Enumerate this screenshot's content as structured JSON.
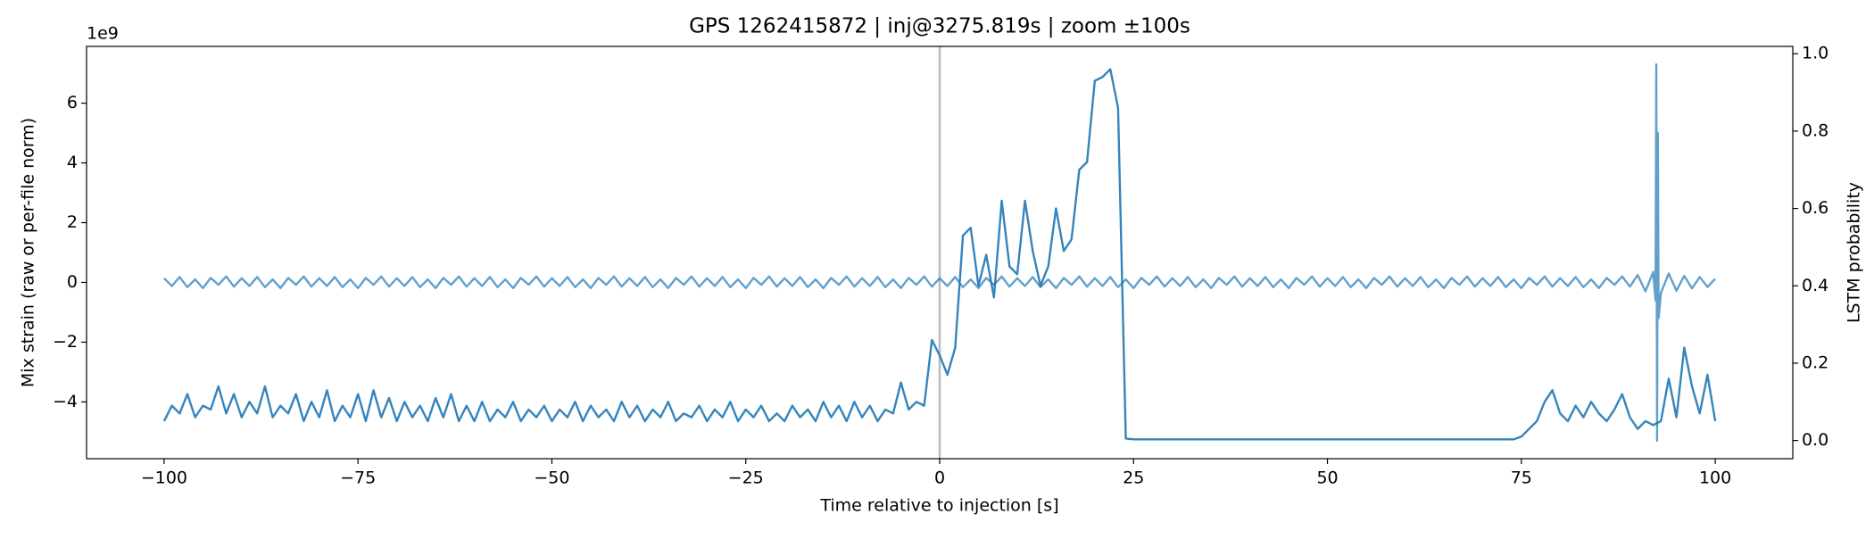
{
  "chart_data": {
    "type": "line",
    "title": "GPS 1262415872 | inj@3275.819s | zoom ±100s",
    "xlabel": "Time relative to injection [s]",
    "ylabel": "Mix strain (raw or per-file norm)",
    "y2label": "LSTM probability",
    "y_offset_label": "1e9",
    "xlim": [
      -110,
      110
    ],
    "xticks": [
      {
        "value": -100,
        "label": "−100"
      },
      {
        "value": -75,
        "label": "−75"
      },
      {
        "value": -50,
        "label": "−50"
      },
      {
        "value": -25,
        "label": "−25"
      },
      0,
      25,
      50,
      75,
      100
    ],
    "ylim": [
      -5.9,
      7.9
    ],
    "yticks": [
      {
        "value": -4,
        "label": "−4"
      },
      {
        "value": -2,
        "label": "−2"
      },
      0,
      2,
      4,
      6
    ],
    "y2lim": [
      -0.047,
      1.019
    ],
    "y2ticks": [
      {
        "value": 0,
        "label": "0.0"
      },
      0.2,
      0.4,
      0.6,
      0.8,
      {
        "value": 1,
        "label": "1.0"
      }
    ],
    "vline": {
      "x": 0,
      "color": "#bbbbbb"
    },
    "series": [
      {
        "name": "strain",
        "color": "#1f77b4",
        "opacity": 0.7,
        "axis": "y",
        "x": [
          -100,
          -99,
          -98,
          -97,
          -96,
          -95,
          -94,
          -93,
          -92,
          -91,
          -90,
          -89,
          -88,
          -87,
          -86,
          -85,
          -84,
          -83,
          -82,
          -81,
          -80,
          -79,
          -78,
          -77,
          -76,
          -75,
          -74,
          -73,
          -72,
          -71,
          -70,
          -69,
          -68,
          -67,
          -66,
          -65,
          -64,
          -63,
          -62,
          -61,
          -60,
          -59,
          -58,
          -57,
          -56,
          -55,
          -54,
          -53,
          -52,
          -51,
          -50,
          -49,
          -48,
          -47,
          -46,
          -45,
          -44,
          -43,
          -42,
          -41,
          -40,
          -39,
          -38,
          -37,
          -36,
          -35,
          -34,
          -33,
          -32,
          -31,
          -30,
          -29,
          -28,
          -27,
          -26,
          -25,
          -24,
          -23,
          -22,
          -21,
          -20,
          -19,
          -18,
          -17,
          -16,
          -15,
          -14,
          -13,
          -12,
          -11,
          -10,
          -9,
          -8,
          -7,
          -6,
          -5,
          -4,
          -3,
          -2,
          -1,
          0,
          1,
          2,
          3,
          4,
          5,
          6,
          7,
          8,
          9,
          10,
          11,
          12,
          13,
          14,
          15,
          16,
          17,
          18,
          19,
          20,
          21,
          22,
          23,
          24,
          25,
          26,
          27,
          28,
          29,
          30,
          31,
          32,
          33,
          34,
          35,
          36,
          37,
          38,
          39,
          40,
          41,
          42,
          43,
          44,
          45,
          46,
          47,
          48,
          49,
          50,
          51,
          52,
          53,
          54,
          55,
          56,
          57,
          58,
          59,
          60,
          61,
          62,
          63,
          64,
          65,
          66,
          67,
          68,
          69,
          70,
          71,
          72,
          73,
          74,
          75,
          76,
          77,
          78,
          79,
          80,
          81,
          82,
          83,
          84,
          85,
          86,
          87,
          88,
          89,
          90,
          91,
          92,
          92.3,
          92.4,
          92.5,
          92.6,
          92.7,
          93,
          94,
          95,
          96,
          97,
          98,
          99,
          100
        ],
        "values": [
          0.14,
          -0.12,
          0.18,
          -0.16,
          0.1,
          -0.19,
          0.15,
          -0.08,
          0.2,
          -0.14,
          0.14,
          -0.12,
          0.18,
          -0.16,
          0.1,
          -0.19,
          0.15,
          -0.08,
          0.2,
          -0.14,
          0.14,
          -0.12,
          0.18,
          -0.16,
          0.1,
          -0.19,
          0.15,
          -0.08,
          0.2,
          -0.14,
          0.14,
          -0.12,
          0.18,
          -0.16,
          0.1,
          -0.19,
          0.15,
          -0.08,
          0.2,
          -0.14,
          0.14,
          -0.12,
          0.18,
          -0.16,
          0.1,
          -0.19,
          0.15,
          -0.08,
          0.2,
          -0.14,
          0.14,
          -0.12,
          0.18,
          -0.16,
          0.1,
          -0.19,
          0.15,
          -0.08,
          0.2,
          -0.14,
          0.14,
          -0.12,
          0.18,
          -0.16,
          0.1,
          -0.19,
          0.15,
          -0.08,
          0.2,
          -0.14,
          0.14,
          -0.12,
          0.18,
          -0.16,
          0.1,
          -0.19,
          0.15,
          -0.08,
          0.2,
          -0.14,
          0.14,
          -0.12,
          0.18,
          -0.16,
          0.1,
          -0.19,
          0.15,
          -0.08,
          0.2,
          -0.14,
          0.14,
          -0.12,
          0.18,
          -0.16,
          0.1,
          -0.19,
          0.15,
          -0.08,
          0.2,
          -0.14,
          0.14,
          -0.12,
          0.18,
          -0.16,
          0.1,
          -0.19,
          0.15,
          -0.08,
          0.2,
          -0.14,
          0.14,
          -0.12,
          0.18,
          -0.16,
          0.1,
          -0.19,
          0.15,
          -0.08,
          0.2,
          -0.14,
          0.14,
          -0.12,
          0.18,
          -0.16,
          0.1,
          -0.19,
          0.15,
          -0.08,
          0.2,
          -0.14,
          0.14,
          -0.12,
          0.18,
          -0.16,
          0.1,
          -0.19,
          0.15,
          -0.08,
          0.2,
          -0.14,
          0.14,
          -0.12,
          0.18,
          -0.16,
          0.1,
          -0.19,
          0.15,
          -0.08,
          0.2,
          -0.14,
          0.14,
          -0.12,
          0.18,
          -0.16,
          0.1,
          -0.19,
          0.15,
          -0.08,
          0.2,
          -0.14,
          0.14,
          -0.12,
          0.18,
          -0.16,
          0.1,
          -0.19,
          0.15,
          -0.08,
          0.2,
          -0.14,
          0.14,
          -0.12,
          0.18,
          -0.16,
          0.1,
          -0.19,
          0.15,
          -0.08,
          0.2,
          -0.14,
          0.14,
          -0.12,
          0.18,
          -0.16,
          0.1,
          -0.19,
          0.15,
          -0.08,
          0.2,
          -0.14,
          0.25,
          -0.3,
          0.35,
          -0.6,
          7.3,
          -5.3,
          5.0,
          -1.2,
          -0.35,
          0.3,
          -0.28,
          0.22,
          -0.2,
          0.18,
          -0.15,
          0.12
        ]
      },
      {
        "name": "LSTM probability",
        "color": "#1f77b4",
        "opacity": 0.9,
        "axis": "y2",
        "x": [
          -100,
          -99,
          -98,
          -97,
          -96,
          -95,
          -94,
          -93,
          -92,
          -91,
          -90,
          -89,
          -88,
          -87,
          -86,
          -85,
          -84,
          -83,
          -82,
          -81,
          -80,
          -79,
          -78,
          -77,
          -76,
          -75,
          -74,
          -73,
          -72,
          -71,
          -70,
          -69,
          -68,
          -67,
          -66,
          -65,
          -64,
          -63,
          -62,
          -61,
          -60,
          -59,
          -58,
          -57,
          -56,
          -55,
          -54,
          -53,
          -52,
          -51,
          -50,
          -49,
          -48,
          -47,
          -46,
          -45,
          -44,
          -43,
          -42,
          -41,
          -40,
          -39,
          -38,
          -37,
          -36,
          -35,
          -34,
          -33,
          -32,
          -31,
          -30,
          -29,
          -28,
          -27,
          -26,
          -25,
          -24,
          -23,
          -22,
          -21,
          -20,
          -19,
          -18,
          -17,
          -16,
          -15,
          -14,
          -13,
          -12,
          -11,
          -10,
          -9,
          -8,
          -7,
          -6,
          -5,
          -4,
          -3,
          -2,
          -1,
          0,
          1,
          2,
          3,
          4,
          5,
          6,
          7,
          8,
          9,
          10,
          11,
          12,
          13,
          14,
          15,
          16,
          17,
          18,
          19,
          20,
          21,
          22,
          23,
          24,
          25,
          26,
          27,
          28,
          29,
          30,
          31,
          32,
          33,
          34,
          35,
          36,
          37,
          38,
          39,
          40,
          41,
          42,
          43,
          44,
          45,
          46,
          47,
          48,
          49,
          50,
          51,
          52,
          53,
          54,
          55,
          56,
          57,
          58,
          59,
          60,
          61,
          62,
          63,
          64,
          65,
          66,
          67,
          68,
          69,
          70,
          71,
          72,
          73,
          74,
          75,
          76,
          77,
          78,
          79,
          80,
          81,
          82,
          83,
          84,
          85,
          86,
          87,
          88,
          89,
          90,
          91,
          92,
          93,
          94,
          95,
          96,
          97,
          98,
          99,
          100
        ],
        "values": [
          0.05,
          0.09,
          0.07,
          0.12,
          0.06,
          0.09,
          0.08,
          0.14,
          0.07,
          0.12,
          0.06,
          0.1,
          0.07,
          0.14,
          0.06,
          0.09,
          0.07,
          0.12,
          0.05,
          0.1,
          0.06,
          0.13,
          0.05,
          0.09,
          0.06,
          0.12,
          0.05,
          0.13,
          0.06,
          0.11,
          0.05,
          0.1,
          0.06,
          0.09,
          0.05,
          0.11,
          0.06,
          0.12,
          0.05,
          0.09,
          0.05,
          0.1,
          0.05,
          0.08,
          0.06,
          0.1,
          0.05,
          0.08,
          0.06,
          0.09,
          0.05,
          0.08,
          0.06,
          0.1,
          0.05,
          0.09,
          0.06,
          0.08,
          0.05,
          0.1,
          0.06,
          0.09,
          0.05,
          0.08,
          0.06,
          0.1,
          0.05,
          0.07,
          0.06,
          0.09,
          0.05,
          0.08,
          0.06,
          0.1,
          0.05,
          0.08,
          0.06,
          0.09,
          0.05,
          0.07,
          0.05,
          0.09,
          0.06,
          0.08,
          0.05,
          0.1,
          0.06,
          0.09,
          0.05,
          0.1,
          0.06,
          0.09,
          0.05,
          0.08,
          0.07,
          0.15,
          0.08,
          0.1,
          0.09,
          0.26,
          0.22,
          0.17,
          0.24,
          0.53,
          0.55,
          0.4,
          0.48,
          0.37,
          0.62,
          0.45,
          0.43,
          0.62,
          0.49,
          0.4,
          0.45,
          0.6,
          0.49,
          0.52,
          0.7,
          0.72,
          0.93,
          0.94,
          0.96,
          0.86,
          0.005,
          0.003,
          0.003,
          0.003,
          0.003,
          0.003,
          0.003,
          0.003,
          0.003,
          0.003,
          0.003,
          0.003,
          0.003,
          0.003,
          0.003,
          0.003,
          0.003,
          0.003,
          0.003,
          0.003,
          0.003,
          0.003,
          0.003,
          0.003,
          0.003,
          0.003,
          0.003,
          0.003,
          0.003,
          0.003,
          0.003,
          0.003,
          0.003,
          0.003,
          0.003,
          0.003,
          0.003,
          0.003,
          0.003,
          0.003,
          0.003,
          0.003,
          0.003,
          0.003,
          0.003,
          0.003,
          0.003,
          0.003,
          0.003,
          0.003,
          0.003,
          0.01,
          0.03,
          0.05,
          0.1,
          0.13,
          0.07,
          0.05,
          0.09,
          0.06,
          0.1,
          0.07,
          0.05,
          0.08,
          0.12,
          0.06,
          0.03,
          0.05,
          0.04,
          0.05,
          0.16,
          0.06,
          0.24,
          0.14,
          0.07,
          0.17,
          0.05
        ]
      }
    ]
  }
}
